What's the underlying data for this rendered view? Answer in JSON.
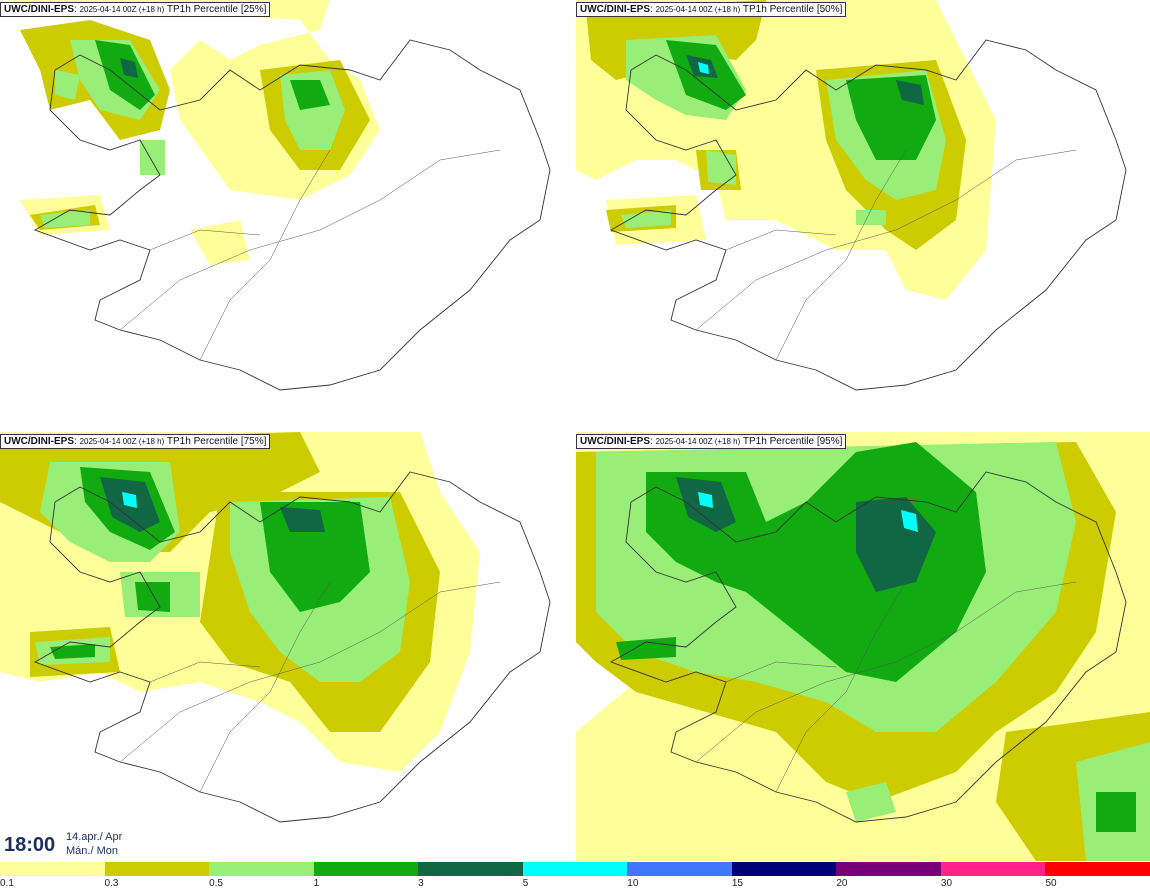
{
  "panels": [
    {
      "model": "UWC/DINI-EPS",
      "run": "2025-04-14 00Z (+18 h)",
      "field": "TP1h Percentile",
      "percentile": "[25%]"
    },
    {
      "model": "UWC/DINI-EPS",
      "run": "2025-04-14 00Z (+18 h)",
      "field": "TP1h Percentile",
      "percentile": "[50%]"
    },
    {
      "model": "UWC/DINI-EPS",
      "run": "2025-04-14 00Z (+18 h)",
      "field": "TP1h Percentile",
      "percentile": "[75%]"
    },
    {
      "model": "UWC/DINI-EPS",
      "run": "2025-04-14 00Z (+18 h)",
      "field": "TP1h Percentile",
      "percentile": "[95%]"
    }
  ],
  "valid_time": {
    "time": "18:00",
    "date_line1": "14.apr./ Apr",
    "date_line2": "Mán./ Mon"
  },
  "legend": {
    "ticks": [
      "0.1",
      "0.3",
      "0.5",
      "1",
      "3",
      "5",
      "10",
      "15",
      "20",
      "30",
      "50"
    ],
    "colors": [
      "#ffff99",
      "#cccc00",
      "#99ee77",
      "#11aa11",
      "#116644",
      "#00ffff",
      "#4477ff",
      "#000077",
      "#770077",
      "#ff2288",
      "#ff0000"
    ]
  }
}
